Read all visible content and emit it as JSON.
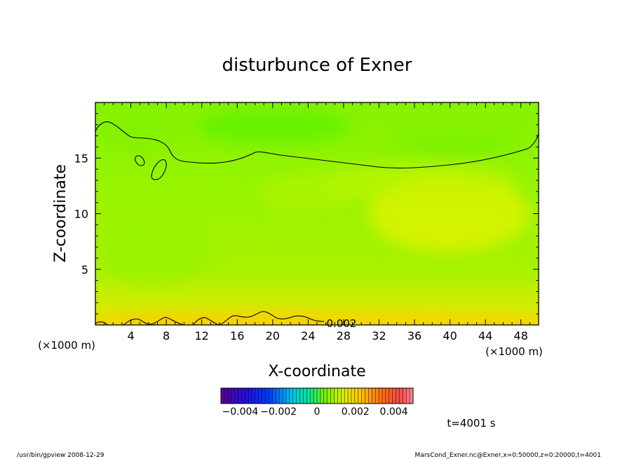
{
  "chart_data": {
    "type": "heatmap",
    "title": "disturbunce of Exner",
    "xlabel": "X-coordinate",
    "ylabel": "Z-coordinate",
    "x_unit_left": "(×1000 m)",
    "x_unit_right": "(×1000 m)",
    "xlim": [
      0,
      50
    ],
    "ylim": [
      0,
      20
    ],
    "xticks": [
      4,
      8,
      12,
      16,
      20,
      24,
      28,
      32,
      36,
      40,
      44,
      48
    ],
    "yticks": [
      5,
      10,
      15
    ],
    "grid": false,
    "colorbar": {
      "vmin": -0.005,
      "vmax": 0.005,
      "tick_labels": [
        "−0.004",
        "−0.002",
        "0",
        "0.002",
        "0.004"
      ],
      "tick_values": [
        -0.004,
        -0.002,
        0,
        0.002,
        0.004
      ]
    },
    "contour_label": "0.002",
    "contour_level": 0.002,
    "field_range_estimate": [
      0.0005,
      0.003
    ],
    "time_label": "t=4001 s",
    "colors": {
      "field_low": "#55f000",
      "field_mid": "#90f400",
      "field_high": "#e6f000",
      "field_max": "#f8d800"
    }
  },
  "footer": {
    "left": "/usr/bin/gpview   2008-12-29",
    "right": "MarsCond_Exner.nc@Exner,x=0:50000,z=0:20000,t=4001"
  }
}
